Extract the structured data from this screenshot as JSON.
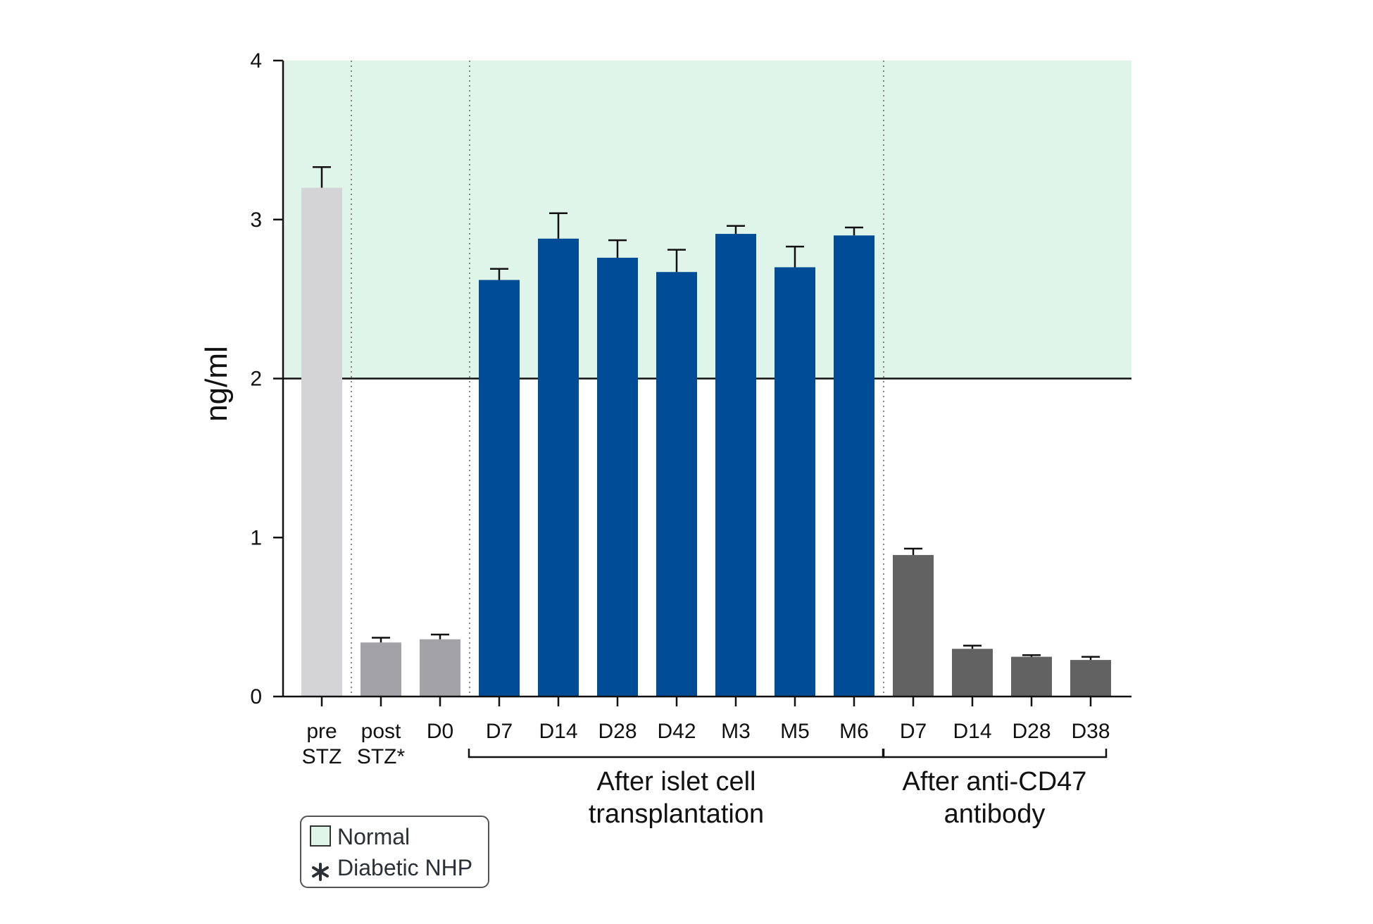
{
  "chart_data": {
    "type": "bar",
    "ylabel": "ng/ml",
    "ylim": [
      0,
      4
    ],
    "yticks": [
      0,
      1,
      2,
      3,
      4
    ],
    "reference_line": 2,
    "normal_range": [
      2,
      4
    ],
    "categories": [
      {
        "label": [
          "pre",
          "STZ"
        ],
        "value": 3.2,
        "error": 0.13,
        "color": "#d4d4d6"
      },
      {
        "label": [
          "post",
          "STZ*"
        ],
        "value": 0.34,
        "error": 0.03,
        "color": "#a3a3a7"
      },
      {
        "label": [
          "D0"
        ],
        "value": 0.36,
        "error": 0.03,
        "color": "#a3a3a7"
      },
      {
        "label": [
          "D7"
        ],
        "value": 2.62,
        "error": 0.07,
        "color": "#004c97"
      },
      {
        "label": [
          "D14"
        ],
        "value": 2.88,
        "error": 0.16,
        "color": "#004c97"
      },
      {
        "label": [
          "D28"
        ],
        "value": 2.76,
        "error": 0.11,
        "color": "#004c97"
      },
      {
        "label": [
          "D42"
        ],
        "value": 2.67,
        "error": 0.14,
        "color": "#004c97"
      },
      {
        "label": [
          "M3"
        ],
        "value": 2.91,
        "error": 0.05,
        "color": "#004c97"
      },
      {
        "label": [
          "M5"
        ],
        "value": 2.7,
        "error": 0.13,
        "color": "#004c97"
      },
      {
        "label": [
          "M6"
        ],
        "value": 2.9,
        "error": 0.05,
        "color": "#004c97"
      },
      {
        "label": [
          "D7"
        ],
        "value": 0.89,
        "error": 0.04,
        "color": "#626262"
      },
      {
        "label": [
          "D14"
        ],
        "value": 0.3,
        "error": 0.02,
        "color": "#626262"
      },
      {
        "label": [
          "D28"
        ],
        "value": 0.25,
        "error": 0.01,
        "color": "#626262"
      },
      {
        "label": [
          "D38"
        ],
        "value": 0.23,
        "error": 0.02,
        "color": "#626262"
      }
    ],
    "dividers_after_index": [
      0,
      2,
      9
    ],
    "groups": [
      {
        "label": [
          "After islet cell",
          "transplantation"
        ],
        "from": 3,
        "to": 9
      },
      {
        "label": [
          "After anti-CD47",
          "antibody"
        ],
        "from": 10,
        "to": 13
      }
    ],
    "legend": [
      {
        "symbol": "box",
        "label": "Normal"
      },
      {
        "symbol": "asterisk",
        "label": "Diabetic NHP"
      }
    ],
    "colors": {
      "normal_fill": "#dff5ea",
      "axis": "#111111",
      "divider": "#7a7a7a",
      "legend_border": "#555555"
    }
  }
}
